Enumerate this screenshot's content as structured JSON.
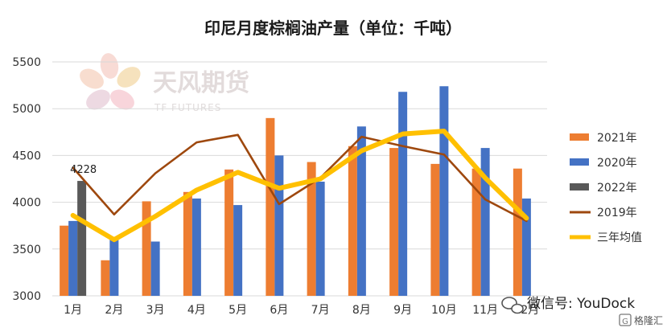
{
  "chart_data": {
    "type": "bar",
    "title": "印尼月度棕榈油产量（单位：千吨）",
    "categories": [
      "1月",
      "2月",
      "3月",
      "4月",
      "5月",
      "6月",
      "7月",
      "8月",
      "9月",
      "10月",
      "11月",
      "12月"
    ],
    "ylim": [
      3000,
      5500
    ],
    "yticks": [
      3000,
      3500,
      4000,
      4500,
      5000,
      5500
    ],
    "grid": true,
    "legend_position": "right",
    "series": [
      {
        "name": "2021年",
        "kind": "bar",
        "color": "#ed7d31",
        "values": [
          3750,
          3380,
          4010,
          4110,
          4350,
          4900,
          4430,
          4600,
          4580,
          4410,
          4360,
          4360
        ]
      },
      {
        "name": "2020年",
        "kind": "bar",
        "color": "#4472c4",
        "values": [
          3800,
          3620,
          3580,
          4040,
          3970,
          4500,
          4220,
          4810,
          5180,
          5240,
          4580,
          4040
        ]
      },
      {
        "name": "2022年",
        "kind": "bar",
        "color": "#595959",
        "values": [
          4228,
          null,
          null,
          null,
          null,
          null,
          null,
          null,
          null,
          null,
          null,
          null
        ]
      },
      {
        "name": "2019年",
        "kind": "line",
        "color": "#9e480e",
        "values": [
          4370,
          3870,
          4310,
          4640,
          4720,
          3980,
          4260,
          4700,
          4600,
          4510,
          4030,
          3800
        ]
      },
      {
        "name": "三年均值",
        "kind": "line",
        "color": "#ffc000",
        "values": [
          3860,
          3600,
          3850,
          4130,
          4320,
          4150,
          4250,
          4550,
          4730,
          4760,
          4260,
          3830
        ]
      }
    ],
    "annotations": [
      {
        "text": "4228"
      }
    ]
  },
  "watermark": {
    "brand_cn": "天风期货",
    "brand_en": "TF FUTURES"
  },
  "footer": {
    "wechat": "微信号: YouDock",
    "logo": "格隆汇"
  }
}
